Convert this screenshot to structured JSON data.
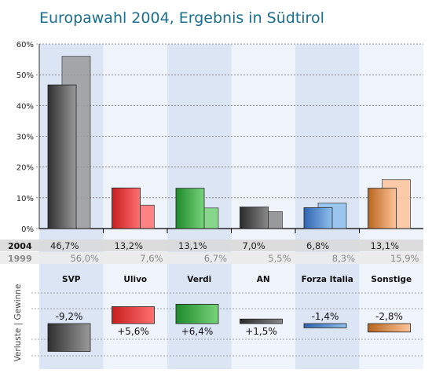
{
  "title": "Europawahl 2004, Ergebnis in Südtirol",
  "chart_data": {
    "type": "bar",
    "title": "Europawahl 2004, Ergebnis in Südtirol",
    "categories": [
      "SVP",
      "Ulivo",
      "Verdi",
      "AN",
      "Forza Italia",
      "Sonstige"
    ],
    "series": [
      {
        "name": "2004",
        "values": [
          46.7,
          13.2,
          13.1,
          7.0,
          6.8,
          13.1
        ],
        "labels": [
          "46,7%",
          "13,2%",
          "13,1%",
          "7,0%",
          "6,8%",
          "13,1%"
        ]
      },
      {
        "name": "1999",
        "values": [
          56.0,
          7.6,
          6.7,
          5.5,
          8.3,
          15.9
        ],
        "labels": [
          "56,0%",
          "7,6%",
          "6,7%",
          "5,5%",
          "8,3%",
          "15,9%"
        ]
      }
    ],
    "ylim": [
      0,
      60
    ],
    "yticks": [
      "0%",
      "10%",
      "20%",
      "30%",
      "40%",
      "50%",
      "60%"
    ],
    "changes": {
      "axis_label": "Verluste | Gewinne",
      "values": [
        -9.2,
        5.6,
        6.4,
        1.5,
        -1.4,
        -2.8
      ],
      "labels": [
        "-9,2%",
        "+5,6%",
        "+6,4%",
        "+1,5%",
        "-1,4%",
        "-2,8%"
      ]
    },
    "colors": {
      "SVP": [
        "#2f2f2f",
        "#9a9a9a"
      ],
      "Ulivo": [
        "#c81e1e",
        "#ff7070"
      ],
      "Verdi": [
        "#1f8a2a",
        "#78d47a"
      ],
      "AN": [
        "#2a2a2a",
        "#8a8a8a"
      ],
      "Forza Italia": [
        "#2f64b0",
        "#8fc0ee"
      ],
      "Sonstige": [
        "#b8651f",
        "#ffc49a"
      ],
      "column_shade": "#dbe5f4",
      "column_light": "#eff3fa"
    }
  }
}
